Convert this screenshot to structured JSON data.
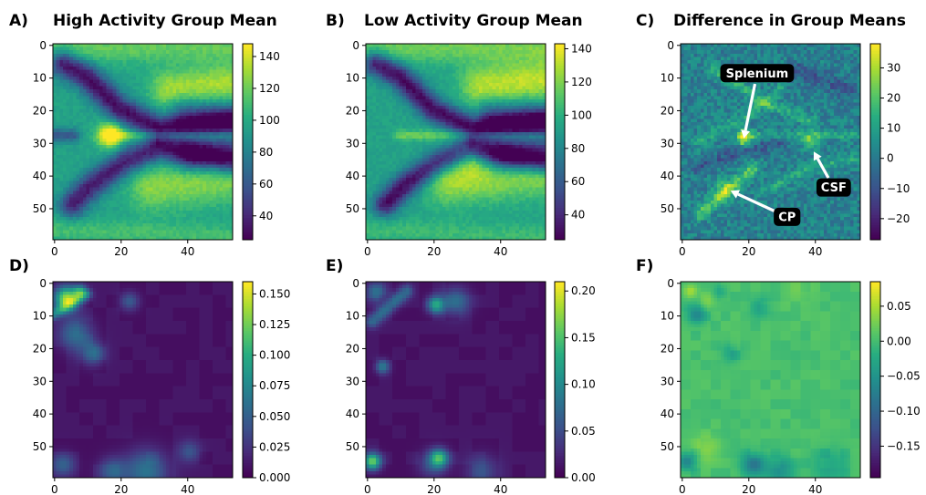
{
  "chart_data": [
    {
      "id": "A",
      "type": "heatmap",
      "panel_label": "A)",
      "title": "High Activity Group Mean",
      "x_ticks": [
        0,
        20,
        40
      ],
      "y_ticks": [
        0,
        10,
        20,
        30,
        40,
        50
      ],
      "xlim": [
        0,
        54
      ],
      "ylim": [
        0,
        60
      ],
      "colorbar": {
        "min": 25,
        "max": 148,
        "ticks": [
          "40",
          "60",
          "80",
          "100",
          "120",
          "140"
        ],
        "tick_values": [
          40,
          60,
          80,
          100,
          120,
          140
        ]
      },
      "colormap": "viridis"
    },
    {
      "id": "B",
      "type": "heatmap",
      "panel_label": "B)",
      "title": "Low Activity Group Mean",
      "x_ticks": [
        0,
        20,
        40
      ],
      "y_ticks": [
        0,
        10,
        20,
        30,
        40,
        50
      ],
      "xlim": [
        0,
        54
      ],
      "ylim": [
        0,
        60
      ],
      "colorbar": {
        "min": 25,
        "max": 143,
        "ticks": [
          "40",
          "60",
          "80",
          "100",
          "120",
          "140"
        ],
        "tick_values": [
          40,
          60,
          80,
          100,
          120,
          140
        ]
      },
      "colormap": "viridis"
    },
    {
      "id": "C",
      "type": "heatmap",
      "panel_label": "C)",
      "title": "Difference in Group Means",
      "x_ticks": [
        0,
        20,
        40
      ],
      "y_ticks": [
        0,
        10,
        20,
        30,
        40,
        50
      ],
      "xlim": [
        0,
        54
      ],
      "ylim": [
        0,
        60
      ],
      "colorbar": {
        "min": -27,
        "max": 38,
        "ticks": [
          "−20",
          "−10",
          "0",
          "10",
          "20",
          "30"
        ],
        "tick_values": [
          -20,
          -10,
          0,
          10,
          20,
          30
        ]
      },
      "colormap": "viridis",
      "annotations": [
        {
          "text": "Splenium",
          "point": [
            19,
            29
          ],
          "label_at": [
            23,
            9
          ]
        },
        {
          "text": "CSF",
          "point": [
            40,
            33
          ],
          "label_at": [
            46,
            44
          ]
        },
        {
          "text": "CP",
          "point": [
            15,
            45
          ],
          "label_at": [
            32,
            53
          ]
        }
      ]
    },
    {
      "id": "D",
      "type": "heatmap",
      "panel_label": "D)",
      "x_ticks": [
        0,
        20,
        40
      ],
      "y_ticks": [
        0,
        10,
        20,
        30,
        40,
        50
      ],
      "xlim": [
        0,
        54
      ],
      "ylim": [
        0,
        60
      ],
      "colorbar": {
        "min": 0,
        "max": 0.16,
        "ticks": [
          "0.000",
          "0.025",
          "0.050",
          "0.075",
          "0.100",
          "0.125",
          "0.150"
        ],
        "tick_values": [
          0,
          0.025,
          0.05,
          0.075,
          0.1,
          0.125,
          0.15
        ]
      },
      "colormap": "viridis"
    },
    {
      "id": "E",
      "type": "heatmap",
      "panel_label": "E)",
      "x_ticks": [
        0,
        20,
        40
      ],
      "y_ticks": [
        0,
        10,
        20,
        30,
        40,
        50
      ],
      "xlim": [
        0,
        54
      ],
      "ylim": [
        0,
        60
      ],
      "colorbar": {
        "min": 0,
        "max": 0.21,
        "ticks": [
          "0.00",
          "0.05",
          "0.10",
          "0.15",
          "0.20"
        ],
        "tick_values": [
          0,
          0.05,
          0.1,
          0.15,
          0.2
        ]
      },
      "colormap": "viridis"
    },
    {
      "id": "F",
      "type": "heatmap",
      "panel_label": "F)",
      "x_ticks": [
        0,
        20,
        40
      ],
      "y_ticks": [
        0,
        10,
        20,
        30,
        40,
        50
      ],
      "xlim": [
        0,
        54
      ],
      "ylim": [
        0,
        60
      ],
      "colorbar": {
        "min": -0.195,
        "max": 0.085,
        "ticks": [
          "−0.15",
          "−0.10",
          "−0.05",
          "0.00",
          "0.05"
        ],
        "tick_values": [
          -0.15,
          -0.1,
          -0.05,
          0,
          0.05
        ]
      },
      "colormap": "viridis"
    }
  ]
}
